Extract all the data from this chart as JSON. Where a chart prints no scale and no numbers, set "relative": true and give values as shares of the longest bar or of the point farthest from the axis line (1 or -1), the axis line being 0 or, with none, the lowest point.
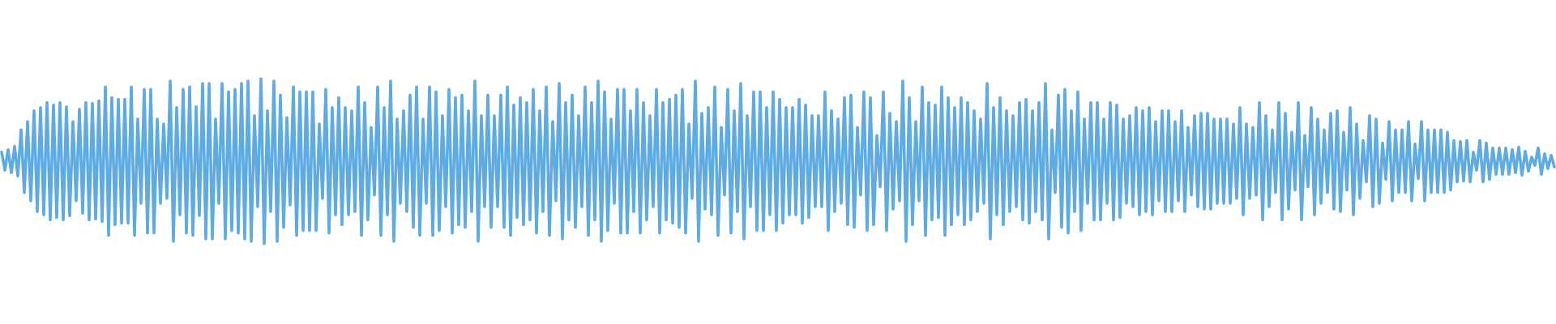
{
  "chart_data": {
    "type": "line",
    "relative": true,
    "color": "#5dabe2",
    "categories": [
      null,
      null,
      null,
      null,
      null,
      null,
      null,
      null,
      null,
      null,
      null,
      null,
      null,
      null,
      null,
      null,
      null,
      null,
      null,
      null,
      null,
      null,
      null,
      null,
      null,
      null,
      null,
      null,
      null,
      null,
      null,
      null,
      null,
      null,
      null,
      null,
      null,
      null,
      null,
      null,
      null,
      null,
      null,
      null,
      null,
      null,
      null,
      null,
      null,
      null,
      null,
      null,
      null,
      null,
      null,
      null,
      null,
      null,
      null,
      null,
      null,
      null,
      null,
      null,
      null,
      null,
      null,
      null,
      null,
      null,
      null,
      null,
      null,
      null,
      null,
      null,
      null,
      null,
      null,
      null,
      null,
      null,
      null,
      null,
      null,
      null,
      null,
      null,
      null,
      null,
      null,
      null,
      null,
      null,
      null,
      null,
      null,
      null,
      null,
      null,
      null,
      null,
      null,
      null,
      null,
      null,
      null,
      null,
      null,
      null,
      null,
      null,
      null,
      null,
      null,
      null,
      null,
      null,
      null,
      null,
      null,
      null,
      null,
      null,
      null,
      null,
      null,
      null,
      null,
      null,
      null,
      null,
      null,
      null,
      null,
      null,
      null,
      null,
      null,
      null,
      null,
      null,
      null,
      null,
      null,
      null,
      null,
      null,
      null,
      null,
      null,
      null,
      null,
      null,
      null,
      null,
      null,
      null,
      null,
      null,
      null,
      null,
      null,
      null,
      null,
      null,
      null,
      null,
      null,
      null,
      null,
      null,
      null,
      null,
      null,
      null,
      null,
      null,
      null,
      null,
      null,
      null,
      null,
      null,
      null,
      null,
      null,
      null,
      null,
      null,
      null,
      null,
      null,
      null,
      null,
      null,
      null,
      null,
      null,
      null,
      null,
      null,
      null,
      null,
      null,
      null,
      null,
      null,
      null,
      null,
      null,
      null,
      null,
      null,
      null,
      null,
      null,
      null,
      null,
      null,
      null,
      null,
      null,
      null,
      null,
      null,
      null,
      null,
      null,
      null,
      null,
      null,
      null,
      null,
      null,
      null,
      null,
      null,
      null,
      null,
      null,
      null,
      null,
      null,
      null,
      null,
      null,
      null,
      null,
      null,
      null,
      null,
      null,
      null,
      null,
      null,
      null,
      null,
      null,
      null,
      null,
      null,
      null,
      null,
      null,
      null,
      null,
      null,
      null,
      null,
      null,
      null,
      null,
      null,
      null,
      null,
      null,
      null,
      null,
      null,
      null,
      null,
      null,
      null,
      null,
      null,
      null,
      null,
      null,
      null,
      null,
      null,
      null,
      null,
      null,
      null,
      null,
      null,
      null,
      null,
      null,
      null,
      null,
      null,
      null,
      null,
      null,
      null,
      null,
      null,
      null,
      null,
      null,
      null,
      null,
      null,
      null,
      null,
      null,
      null,
      null,
      null,
      null,
      null,
      null,
      null,
      null,
      null,
      null,
      null,
      null,
      null,
      null,
      null,
      null,
      null,
      null,
      null,
      null,
      null,
      null,
      null,
      null,
      null,
      null,
      null,
      null,
      null,
      null,
      null,
      null,
      null,
      null,
      null,
      null,
      null,
      null,
      null,
      null,
      null,
      null,
      null,
      null,
      null,
      null,
      null,
      null,
      null,
      null,
      null,
      null,
      null,
      null,
      null,
      null,
      null,
      null,
      null,
      null,
      null,
      null,
      null,
      null,
      null,
      null,
      null,
      null,
      null,
      null,
      null,
      null,
      null,
      null,
      null,
      null,
      null,
      null,
      null,
      null,
      null,
      null,
      null,
      null,
      null,
      null,
      null,
      null,
      null,
      null,
      null,
      null,
      null,
      null,
      null,
      null,
      null,
      null,
      null,
      null,
      null,
      null,
      null,
      null,
      null,
      null,
      null,
      null,
      null,
      null,
      null,
      null,
      null,
      null,
      null,
      null,
      null,
      null,
      null,
      null,
      null,
      null,
      null,
      null,
      null,
      null,
      null,
      null,
      null,
      null,
      null,
      null,
      null,
      null,
      null,
      null,
      null,
      null,
      null,
      null,
      null,
      null,
      null,
      null,
      null,
      null,
      null,
      null,
      null,
      null,
      null,
      null,
      null,
      null,
      null,
      null,
      null,
      null,
      null,
      null,
      null
    ],
    "values": [
      0.555,
      0.445,
      0.57,
      0.43,
      0.59,
      0.41,
      0.69,
      0.31,
      0.74,
      0.26,
      0.805,
      0.195,
      0.825,
      0.175,
      0.855,
      0.145,
      0.84,
      0.16,
      0.855,
      0.145,
      0.83,
      0.17,
      0.74,
      0.26,
      0.815,
      0.185,
      0.855,
      0.145,
      0.85,
      0.15,
      0.865,
      0.135,
      0.95,
      0.05,
      0.885,
      0.115,
      0.875,
      0.125,
      0.875,
      0.125,
      0.95,
      0.05,
      0.755,
      0.245,
      0.935,
      0.065,
      0.935,
      0.065,
      0.755,
      0.245,
      0.725,
      0.275,
      0.985,
      0.015,
      0.825,
      0.175,
      0.935,
      0.065,
      0.95,
      0.05,
      0.83,
      0.17,
      0.97,
      0.03,
      0.97,
      0.03,
      0.755,
      0.245,
      0.97,
      0.03,
      0.92,
      0.08,
      0.935,
      0.065,
      0.97,
      0.03,
      0.985,
      0.015,
      0.775,
      0.225,
      1,
      0,
      0.805,
      0.195,
      0.985,
      0.015,
      0.9,
      0.1,
      0.765,
      0.235,
      0.95,
      0.05,
      0.92,
      0.08,
      0.92,
      0.08,
      0.92,
      0.08,
      0.725,
      0.275,
      0.935,
      0.065,
      0.825,
      0.175,
      0.885,
      0.115,
      0.825,
      0.175,
      0.805,
      0.195,
      0.95,
      0.05,
      0.855,
      0.145,
      0.705,
      0.295,
      0.95,
      0.05,
      0.825,
      0.175,
      0.985,
      0.015,
      0.755,
      0.245,
      0.805,
      0.195,
      0.9,
      0.1,
      0.95,
      0.05,
      0.755,
      0.245,
      0.95,
      0.05,
      0.92,
      0.08,
      0.775,
      0.225,
      0.935,
      0.065,
      0.885,
      0.115,
      0.9,
      0.1,
      0.805,
      0.195,
      0.985,
      0.015,
      0.775,
      0.225,
      0.9,
      0.1,
      0.775,
      0.225,
      0.9,
      0.1,
      0.95,
      0.05,
      0.84,
      0.16,
      0.885,
      0.115,
      0.855,
      0.145,
      0.935,
      0.065,
      0.805,
      0.195,
      0.95,
      0.05,
      0.74,
      0.26,
      0.97,
      0.03,
      0.855,
      0.145,
      0.9,
      0.1,
      0.775,
      0.225,
      0.95,
      0.05,
      0.855,
      0.145,
      0.985,
      0.015,
      0.92,
      0.08,
      0.755,
      0.245,
      0.935,
      0.065,
      0.935,
      0.065,
      0.805,
      0.195,
      0.935,
      0.065,
      0.855,
      0.145,
      0.775,
      0.225,
      0.935,
      0.065,
      0.855,
      0.145,
      0.875,
      0.125,
      0.9,
      0.1,
      0.935,
      0.065,
      0.725,
      0.275,
      0.985,
      0.015,
      0.79,
      0.21,
      0.825,
      0.175,
      0.95,
      0.05,
      0.705,
      0.295,
      0.935,
      0.065,
      0.805,
      0.195,
      0.97,
      0.03,
      0.775,
      0.225,
      0.92,
      0.08,
      0.92,
      0.08,
      0.825,
      0.175,
      0.92,
      0.08,
      0.875,
      0.125,
      0.825,
      0.175,
      0.825,
      0.175,
      0.875,
      0.125,
      0.84,
      0.16,
      0.775,
      0.225,
      0.775,
      0.225,
      0.92,
      0.08,
      0.805,
      0.195,
      0.755,
      0.245,
      0.885,
      0.115,
      0.9,
      0.1,
      0.705,
      0.295,
      0.92,
      0.08,
      0.885,
      0.115,
      0.655,
      0.345,
      0.92,
      0.08,
      0.79,
      0.21,
      0.74,
      0.26,
      0.985,
      0.015,
      0.885,
      0.115,
      0.74,
      0.26,
      0.95,
      0.05,
      0.855,
      0.145,
      0.84,
      0.16,
      0.95,
      0.05,
      0.885,
      0.115,
      0.825,
      0.175,
      0.885,
      0.115,
      0.855,
      0.145,
      0.805,
      0.195,
      0.755,
      0.245,
      0.97,
      0.03,
      0.825,
      0.175,
      0.885,
      0.115,
      0.805,
      0.195,
      0.775,
      0.225,
      0.855,
      0.145,
      0.875,
      0.125,
      0.805,
      0.195,
      0.855,
      0.145,
      0.97,
      0.03,
      0.69,
      0.31,
      0.9,
      0.1,
      0.935,
      0.065,
      0.805,
      0.195,
      0.92,
      0.08,
      0.755,
      0.245,
      0.855,
      0.145,
      0.855,
      0.145,
      0.755,
      0.245,
      0.855,
      0.145,
      0.84,
      0.16,
      0.755,
      0.245,
      0.775,
      0.225,
      0.825,
      0.175,
      0.805,
      0.195,
      0.825,
      0.175,
      0.74,
      0.26,
      0.805,
      0.195,
      0.805,
      0.195,
      0.74,
      0.26,
      0.805,
      0.195,
      0.705,
      0.295,
      0.775,
      0.225,
      0.79,
      0.21,
      0.79,
      0.21,
      0.755,
      0.245,
      0.755,
      0.245,
      0.755,
      0.245,
      0.725,
      0.275,
      0.825,
      0.175,
      0.725,
      0.275,
      0.705,
      0.295,
      0.855,
      0.145,
      0.775,
      0.225,
      0.69,
      0.31,
      0.855,
      0.145,
      0.79,
      0.21,
      0.675,
      0.325,
      0.855,
      0.145,
      0.655,
      0.345,
      0.825,
      0.175,
      0.755,
      0.245,
      0.69,
      0.31,
      0.79,
      0.21,
      0.805,
      0.195,
      0.675,
      0.325,
      0.825,
      0.175,
      0.725,
      0.275,
      0.625,
      0.375,
      0.775,
      0.225,
      0.755,
      0.245,
      0.61,
      0.39,
      0.74,
      0.26,
      0.69,
      0.31,
      0.69,
      0.31,
      0.74,
      0.26,
      0.605,
      0.395,
      0.74,
      0.26,
      0.69,
      0.31,
      0.69,
      0.31,
      0.69,
      0.31,
      0.675,
      0.325,
      0.625,
      0.375,
      0.62,
      0.38,
      0.625,
      0.375,
      0.555,
      0.445,
      0.625,
      0.375,
      0.61,
      0.39,
      0.58,
      0.42,
      0.58,
      0.42,
      0.58,
      0.42,
      0.57,
      0.43,
      0.585,
      0.415,
      0.56,
      0.44,
      0.525,
      0.475,
      0.58,
      0.42,
      0.545,
      0.455,
      0.535,
      0.465
    ]
  }
}
